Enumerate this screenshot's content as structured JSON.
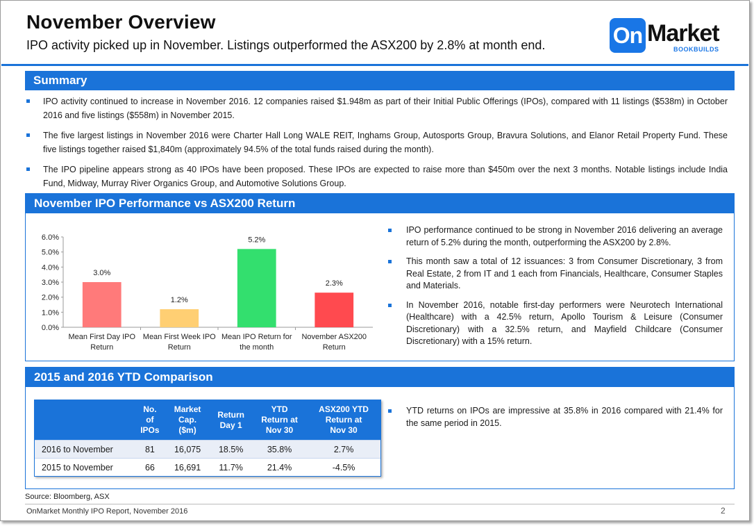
{
  "header": {
    "title": "November Overview",
    "subtitle": "IPO activity picked up in November. Listings outperformed the ASX200 by 2.8% at month end.",
    "logo": {
      "on": "On",
      "market": "Market",
      "sub": "BOOKBUILDS"
    }
  },
  "summary": {
    "heading": "Summary",
    "bullets": [
      "IPO activity continued to increase in November 2016. 12 companies raised $1.948m as part of their Initial Public Offerings (IPOs), compared with 11 listings ($538m) in October 2016 and five listings ($558m) in November 2015.",
      "The five largest listings in November 2016 were Charter Hall Long WALE REIT, Inghams Group, Autosports Group, Bravura Solutions, and Elanor Retail Property Fund. These five listings together raised $1,840m (approximately 94.5% of the total funds raised during the month).",
      "The IPO pipeline appears strong as 40 IPOs have been proposed. These IPOs are expected to raise more than $450m over the next 3 months. Notable listings include India Fund, Midway, Murray River Organics Group, and Automotive Solutions Group."
    ]
  },
  "performance": {
    "heading": "November IPO Performance vs ASX200 Return",
    "bullets": [
      "IPO performance continued to be strong in November 2016 delivering an average return of 5.2% during the month, outperforming the ASX200 by 2.8%.",
      "This month saw a total of 12 issuances: 3 from Consumer Discretionary, 3 from Real Estate, 2 from IT and 1 each from Financials, Healthcare, Consumer Staples and Materials.",
      "In November 2016, notable first-day performers were Neurotech International (Healthcare) with a 42.5% return, Apollo Tourism & Leisure (Consumer Discretionary) with a 32.5% return, and Mayfield Childcare (Consumer Discretionary) with a 15% return."
    ]
  },
  "chart_data": {
    "type": "bar",
    "categories": [
      [
        "Mean First Day IPO",
        "Return"
      ],
      [
        "Mean First Week IPO",
        "Return"
      ],
      [
        "Mean IPO Return for",
        "the month"
      ],
      [
        "November ASX200",
        "Return"
      ]
    ],
    "values": [
      3.0,
      1.2,
      5.2,
      2.3
    ],
    "data_labels": [
      "3.0%",
      "1.2%",
      "5.2%",
      "2.3%"
    ],
    "colors": [
      "#ff7a7a",
      "#ffcf73",
      "#33df6e",
      "#ff4a4f"
    ],
    "ylim": [
      0,
      6
    ],
    "yticks": [
      "0.0%",
      "1.0%",
      "2.0%",
      "3.0%",
      "4.0%",
      "5.0%",
      "6.0%"
    ],
    "grid": false,
    "title": "",
    "xlabel": "",
    "ylabel": ""
  },
  "ytd": {
    "heading": "2015 and 2016 YTD Comparison",
    "columns": [
      [
        "No.",
        "of",
        "IPOs"
      ],
      [
        "Market",
        "Cap.",
        "($m)"
      ],
      [
        "Return",
        "Day 1"
      ],
      [
        "YTD",
        "Return at",
        "Nov 30"
      ],
      [
        "ASX200 YTD",
        "Return at",
        "Nov 30"
      ]
    ],
    "rows": [
      {
        "label": "2016 to November",
        "cells": [
          "81",
          "16,075",
          "18.5%",
          "35.8%",
          "2.7%"
        ]
      },
      {
        "label": "2015 to November",
        "cells": [
          "66",
          "16,691",
          "11.7%",
          "21.4%",
          "-4.5%"
        ]
      }
    ],
    "bullets": [
      "YTD returns on IPOs are impressive at 35.8% in 2016 compared with 21.4% for the same period in 2015."
    ]
  },
  "footer": {
    "source": "Source: Bloomberg, ASX",
    "report": "OnMarket Monthly IPO Report, November 2016",
    "page": "2"
  }
}
